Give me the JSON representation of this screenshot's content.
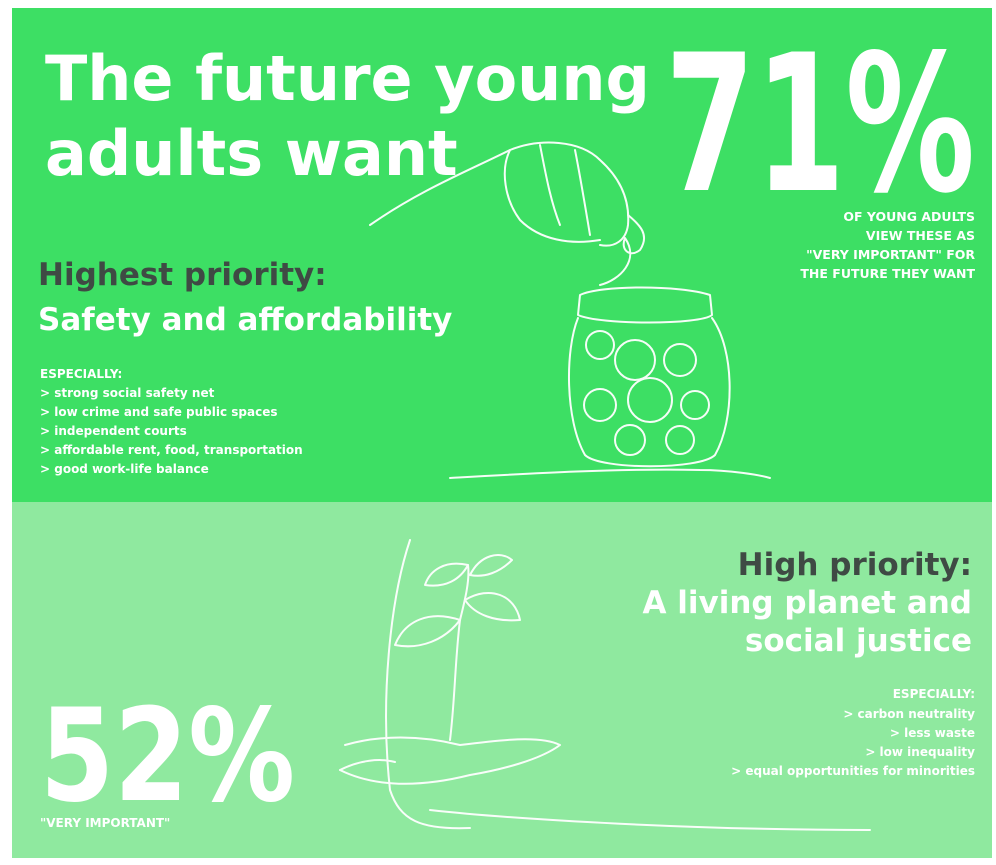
{
  "header": {
    "title_lines": [
      "The future young",
      "adults want"
    ],
    "stat": "71%",
    "stat_caption_lines": [
      "OF YOUNG ADULTS",
      "VIEW THESE AS",
      "\"VERY IMPORTANT\" FOR",
      "THE FUTURE THEY WANT"
    ]
  },
  "highest": {
    "label": "Highest priority:",
    "topic": "Safety and affordability",
    "list_title": "ESPECIALLY:",
    "items": [
      "> strong social safety net",
      "> low crime and safe public spaces",
      "> independent courts",
      "> affordable rent, food, transportation",
      "> good work-life balance"
    ]
  },
  "high": {
    "label": "High priority:",
    "topic_lines": [
      "A living planet and",
      "social justice"
    ],
    "list_title": "ESPECIALLY:",
    "items": [
      "> carbon neutrality",
      "> less waste",
      "> low inequality",
      "> equal opportunities for minorities"
    ],
    "stat": "52%",
    "stat_caption": "\"VERY IMPORTANT\""
  }
}
